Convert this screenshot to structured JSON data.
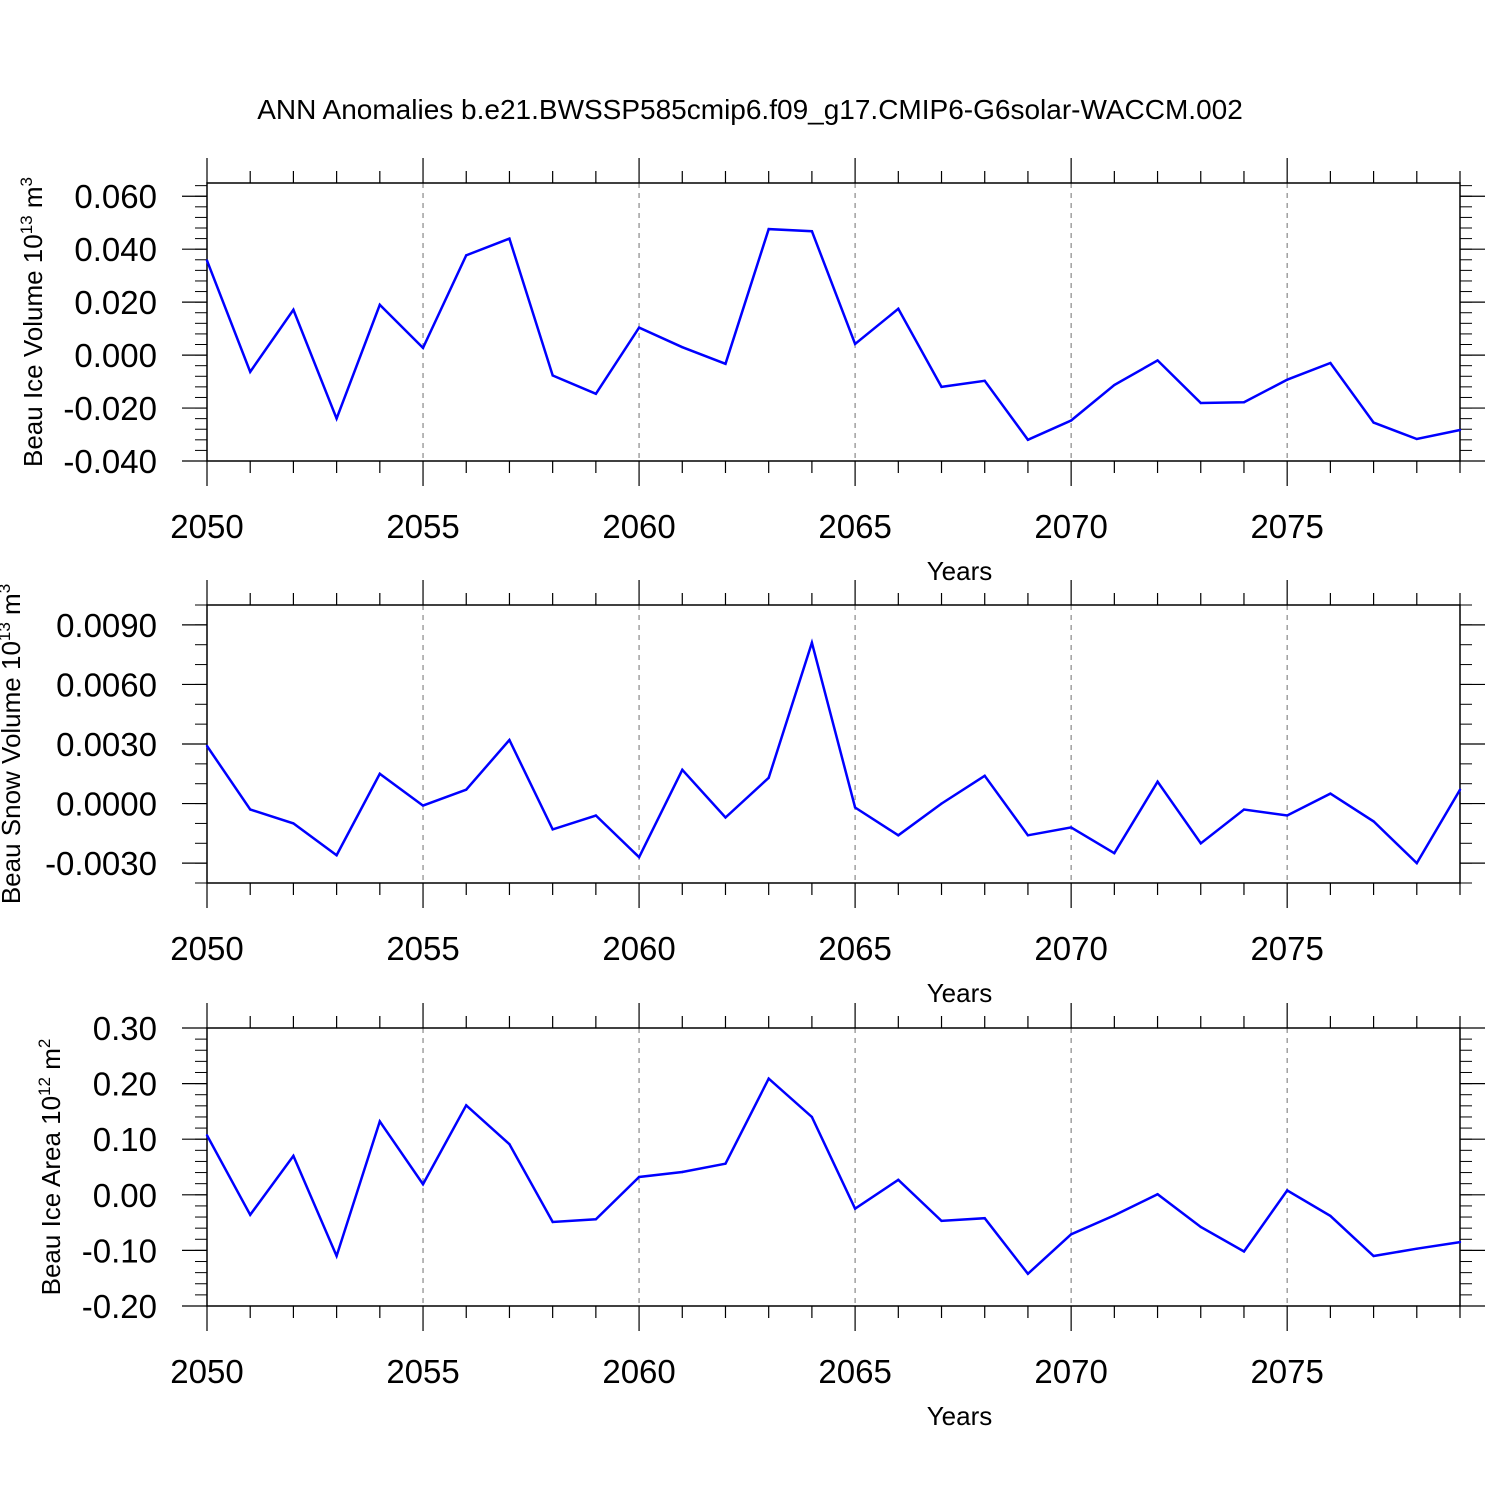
{
  "title": "ANN Anomalies b.e21.BWSSP585cmip6.f09_g17.CMIP6-G6solar-WACCM.002",
  "colors": {
    "line": "#0000ff",
    "axes": "#000000",
    "grid": "#888888",
    "background": "#ffffff"
  },
  "chart_data": [
    {
      "type": "line",
      "xlabel": "Years",
      "ylabel": {
        "text": "Beau Ice Volume 10",
        "sup": "13",
        "unit": " m",
        "unit_sup": "3"
      },
      "xlim": [
        2050,
        2079
      ],
      "ylim": [
        -0.04,
        0.065
      ],
      "xticks": [
        "2050",
        "2055",
        "2060",
        "2065",
        "2070",
        "2075"
      ],
      "yticks": [
        "0.060",
        "0.040",
        "0.020",
        "0.000",
        "-0.020",
        "-0.040"
      ],
      "ytick_values": [
        0.06,
        0.04,
        0.02,
        0.0,
        -0.02,
        -0.04
      ],
      "ytick_minor_step": 0.004,
      "grid": "dashed vertical at major x ticks",
      "x": [
        2050,
        2051,
        2052,
        2053,
        2054,
        2055,
        2056,
        2057,
        2058,
        2059,
        2060,
        2061,
        2062,
        2063,
        2064,
        2065,
        2066,
        2067,
        2068,
        2069,
        2070,
        2071,
        2072,
        2073,
        2074,
        2075,
        2076,
        2077,
        2078,
        2079
      ],
      "values": [
        0.0357,
        -0.0063,
        0.0171,
        -0.024,
        0.019,
        0.0027,
        0.0377,
        0.044,
        -0.0077,
        -0.0146,
        0.0104,
        0.003,
        -0.0033,
        0.0476,
        0.0468,
        0.0042,
        0.0175,
        -0.012,
        -0.0097,
        -0.032,
        -0.0247,
        -0.0113,
        -0.002,
        -0.0181,
        -0.0178,
        -0.0093,
        -0.003,
        -0.0255,
        -0.0317,
        -0.0283
      ]
    },
    {
      "type": "line",
      "xlabel": "Years",
      "ylabel": {
        "text": "Beau Snow Volume 10",
        "sup": "13",
        "unit": " m",
        "unit_sup": "3"
      },
      "xlim": [
        2050,
        2079
      ],
      "ylim": [
        -0.004,
        0.01
      ],
      "xticks": [
        "2050",
        "2055",
        "2060",
        "2065",
        "2070",
        "2075"
      ],
      "yticks": [
        "0.0090",
        "0.0060",
        "0.0030",
        "0.0000",
        "-0.0030"
      ],
      "ytick_values": [
        0.009,
        0.006,
        0.003,
        0.0,
        -0.003
      ],
      "ytick_minor_step": 0.001,
      "grid": "dashed vertical at major x ticks",
      "x": [
        2050,
        2051,
        2052,
        2053,
        2054,
        2055,
        2056,
        2057,
        2058,
        2059,
        2060,
        2061,
        2062,
        2063,
        2064,
        2065,
        2066,
        2067,
        2068,
        2069,
        2070,
        2071,
        2072,
        2073,
        2074,
        2075,
        2076,
        2077,
        2078,
        2079
      ],
      "values": [
        0.0029,
        -0.0003,
        -0.001,
        -0.0026,
        0.0015,
        -0.0001,
        0.0007,
        0.0032,
        -0.0013,
        -0.0006,
        -0.0027,
        0.0017,
        -0.0007,
        0.0013,
        0.0081,
        -0.0002,
        -0.0016,
        0.0,
        0.0014,
        -0.0016,
        -0.0012,
        -0.0025,
        0.0011,
        -0.002,
        -0.0003,
        -0.0006,
        0.0005,
        -0.0009,
        -0.003,
        0.0007
      ]
    },
    {
      "type": "line",
      "xlabel": "Years",
      "ylabel": {
        "text": "Beau Ice Area 10",
        "sup": "12",
        "unit": " m",
        "unit_sup": "2"
      },
      "xlim": [
        2050,
        2079
      ],
      "ylim": [
        -0.2,
        0.3
      ],
      "xticks": [
        "2050",
        "2055",
        "2060",
        "2065",
        "2070",
        "2075"
      ],
      "yticks": [
        "0.30",
        "0.20",
        "0.10",
        "0.00",
        "-0.10",
        "-0.20"
      ],
      "ytick_values": [
        0.3,
        0.2,
        0.1,
        0.0,
        -0.1,
        -0.2
      ],
      "ytick_minor_step": 0.02,
      "grid": "dashed vertical at major x ticks",
      "x": [
        2050,
        2051,
        2052,
        2053,
        2054,
        2055,
        2056,
        2057,
        2058,
        2059,
        2060,
        2061,
        2062,
        2063,
        2064,
        2065,
        2066,
        2067,
        2068,
        2069,
        2070,
        2071,
        2072,
        2073,
        2074,
        2075,
        2076,
        2077,
        2078,
        2079
      ],
      "values": [
        0.107,
        -0.036,
        0.07,
        -0.11,
        0.132,
        0.019,
        0.161,
        0.091,
        -0.049,
        -0.044,
        0.032,
        0.041,
        0.056,
        0.209,
        0.14,
        -0.025,
        0.027,
        -0.047,
        -0.042,
        -0.142,
        -0.071,
        -0.037,
        0.001,
        -0.058,
        -0.102,
        0.008,
        -0.038,
        -0.11,
        -0.097,
        -0.085
      ]
    }
  ]
}
